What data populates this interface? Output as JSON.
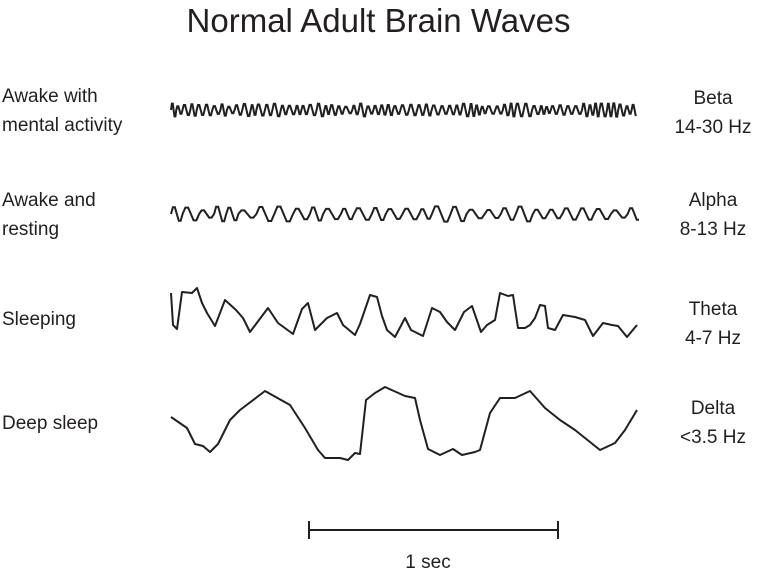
{
  "title": "Normal Adult Brain Waves",
  "rows": [
    {
      "state": [
        "Awake with",
        "mental activity"
      ],
      "wave": "Beta",
      "range": "14-30 Hz"
    },
    {
      "state": [
        "Awake and",
        "resting"
      ],
      "wave": "Alpha",
      "range": "8-13 Hz"
    },
    {
      "state": [
        "Sleeping"
      ],
      "wave": "Theta",
      "range": "4-7 Hz"
    },
    {
      "state": [
        "Deep sleep"
      ],
      "wave": "Delta",
      "range": "<3.5 Hz"
    }
  ],
  "scale_bar": {
    "label": "1 sec"
  },
  "colors": {
    "ink": "#231f20"
  }
}
